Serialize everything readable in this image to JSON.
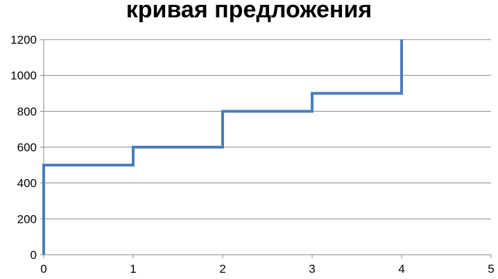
{
  "chart_data": {
    "type": "line",
    "title": "кривая предложения",
    "xlabel": "",
    "ylabel": "",
    "xlim": [
      0,
      5
    ],
    "ylim": [
      0,
      1200
    ],
    "x_ticks": [
      0,
      1,
      2,
      3,
      4,
      5
    ],
    "y_ticks": [
      0,
      200,
      400,
      600,
      800,
      1000,
      1200
    ],
    "grid": "horizontal",
    "legend": "none",
    "series": [
      {
        "x": [
          0,
          0,
          1,
          1,
          2,
          2,
          3,
          3,
          4,
          4
        ],
        "y": [
          0,
          500,
          500,
          600,
          600,
          800,
          800,
          900,
          900,
          1200
        ]
      }
    ],
    "colors": {
      "line": "#4a7ebb",
      "grid": "#868686",
      "axis": "#868686"
    }
  }
}
